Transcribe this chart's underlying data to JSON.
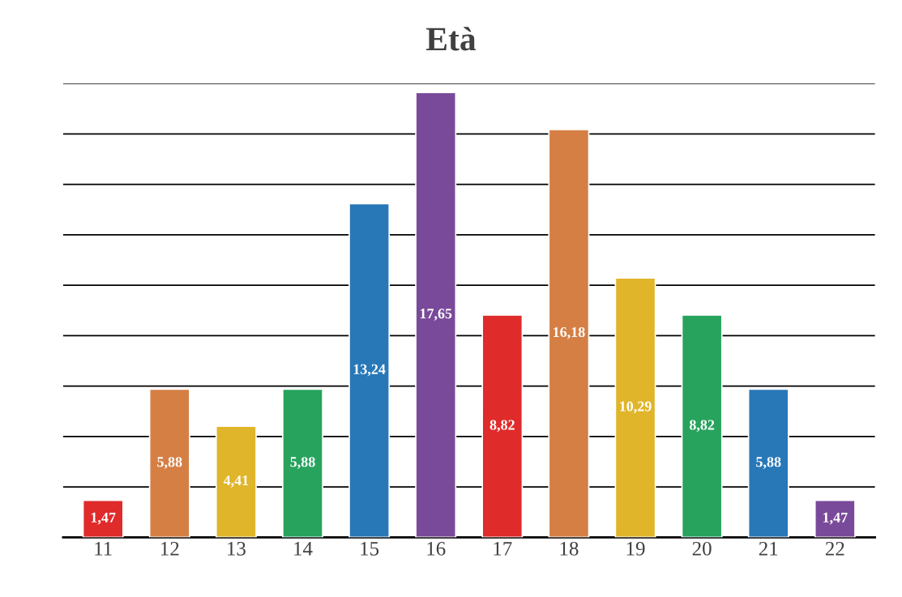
{
  "chart_data": {
    "type": "bar",
    "title": "Età",
    "categories": [
      "11",
      "12",
      "13",
      "14",
      "15",
      "16",
      "17",
      "18",
      "19",
      "20",
      "21",
      "22"
    ],
    "values": [
      1.47,
      5.88,
      4.41,
      5.88,
      13.24,
      17.65,
      8.82,
      16.18,
      10.29,
      8.82,
      5.88,
      1.47
    ],
    "value_labels": [
      "1,47",
      "5,88",
      "4,41",
      "5,88",
      "13,24",
      "17,65",
      "8,82",
      "16,18",
      "10,29",
      "8,82",
      "5,88",
      "1,47"
    ],
    "colors": [
      "#e02b2b",
      "#d57f45",
      "#e0b52a",
      "#27a35e",
      "#2878b8",
      "#7a4a9a",
      "#e02b2b",
      "#d57f45",
      "#e0b52a",
      "#27a35e",
      "#2878b8",
      "#7a4a9a"
    ],
    "ylim": [
      0,
      18
    ],
    "yticks": [
      {
        "value": 0,
        "label": null
      },
      {
        "value": 2,
        "label": null
      },
      {
        "value": 4,
        "label": null
      },
      {
        "value": 6,
        "label": null
      },
      {
        "value": 8,
        "label": null
      },
      {
        "value": 10,
        "label": null
      },
      {
        "value": 12,
        "label": null
      },
      {
        "value": 14,
        "label": null
      },
      {
        "value": 16,
        "label": null
      },
      {
        "value": 18,
        "label": null
      }
    ],
    "grid": "y",
    "tick_labels": "x"
  }
}
